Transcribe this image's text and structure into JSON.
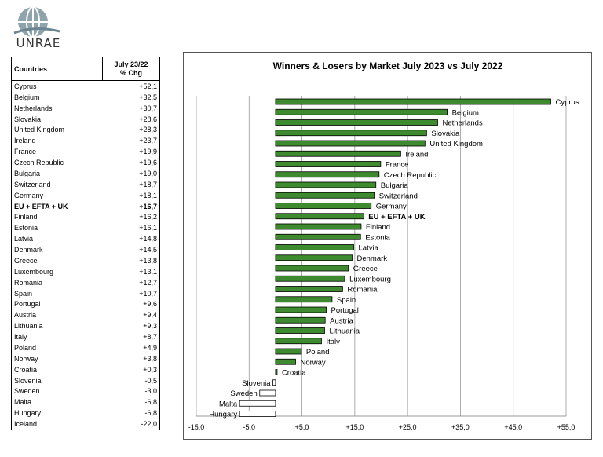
{
  "logo": {
    "text": "UNRAE"
  },
  "table": {
    "header_country": "Countries",
    "header_change_line1": "July 23/22",
    "header_change_line2": "% Chg",
    "rows": [
      {
        "country": "Cyprus",
        "change": "+52,1"
      },
      {
        "country": "Belgium",
        "change": "+32,5"
      },
      {
        "country": "Netherlands",
        "change": "+30,7"
      },
      {
        "country": "Slovakia",
        "change": "+28,6"
      },
      {
        "country": "United Kingdom",
        "change": "+28,3"
      },
      {
        "country": "Ireland",
        "change": "+23,7"
      },
      {
        "country": "France",
        "change": "+19,9"
      },
      {
        "country": "Czech Republic",
        "change": "+19,6"
      },
      {
        "country": "Bulgaria",
        "change": "+19,0"
      },
      {
        "country": "Switzerland",
        "change": "+18,7"
      },
      {
        "country": "Germany",
        "change": "+18,1"
      },
      {
        "country": "EU + EFTA + UK",
        "change": "+16,7",
        "bold": true
      },
      {
        "country": "Finland",
        "change": "+16,2"
      },
      {
        "country": "Estonia",
        "change": "+16,1"
      },
      {
        "country": "Latvia",
        "change": "+14,8"
      },
      {
        "country": "Denmark",
        "change": "+14,5"
      },
      {
        "country": "Greece",
        "change": "+13,8"
      },
      {
        "country": "Luxembourg",
        "change": "+13,1"
      },
      {
        "country": "Romania",
        "change": "+12,7"
      },
      {
        "country": "Spain",
        "change": "+10,7"
      },
      {
        "country": "Portugal",
        "change": "+9,6"
      },
      {
        "country": "Austria",
        "change": "+9,4"
      },
      {
        "country": "Lithuania",
        "change": "+9,3"
      },
      {
        "country": "Italy",
        "change": "+8,7"
      },
      {
        "country": "Poland",
        "change": "+4,9"
      },
      {
        "country": "Norway",
        "change": "+3,8"
      },
      {
        "country": "Croatia",
        "change": "+0,3"
      },
      {
        "country": "Slovenia",
        "change": "-0,5"
      },
      {
        "country": "Sweden",
        "change": "-3,0"
      },
      {
        "country": "Malta",
        "change": "-6,8"
      },
      {
        "country": "Hungary",
        "change": "-6,8"
      },
      {
        "country": "Iceland",
        "change": "-22,0"
      }
    ]
  },
  "chart_data": {
    "type": "bar",
    "orientation": "horizontal",
    "title": "Winners & Losers by Market July 2023 vs July 2022",
    "xlabel": "",
    "ylabel": "",
    "xlim": [
      -15,
      55
    ],
    "xticks": [
      -15,
      -5,
      5,
      15,
      25,
      35,
      45,
      55
    ],
    "xtick_labels": [
      "-15,0",
      "-5,0",
      "+5,0",
      "+15,0",
      "+25,0",
      "+35,0",
      "+45,0",
      "+55,0"
    ],
    "grid": "vertical",
    "positive_color": "#3e8a2e",
    "negative_color": "#ffffff",
    "categories": [
      "Cyprus",
      "Belgium",
      "Netherlands",
      "Slovakia",
      "United Kingdom",
      "Ireland",
      "France",
      "Czech Republic",
      "Bulgaria",
      "Switzerland",
      "Germany",
      "EU + EFTA + UK",
      "Finland",
      "Estonia",
      "Latvia",
      "Denmark",
      "Greece",
      "Luxembourg",
      "Romania",
      "Spain",
      "Portugal",
      "Austria",
      "Lithuania",
      "Italy",
      "Poland",
      "Norway",
      "Croatia",
      "Slovenia",
      "Sweden",
      "Malta",
      "Hungary"
    ],
    "values": [
      52.1,
      32.5,
      30.7,
      28.6,
      28.3,
      23.7,
      19.9,
      19.6,
      19.0,
      18.7,
      18.1,
      16.7,
      16.2,
      16.1,
      14.8,
      14.5,
      13.8,
      13.1,
      12.7,
      10.7,
      9.6,
      9.4,
      9.3,
      8.7,
      4.9,
      3.8,
      0.3,
      -0.5,
      -3.0,
      -6.8,
      -6.8
    ],
    "bold_categories": [
      "EU + EFTA + UK"
    ]
  }
}
